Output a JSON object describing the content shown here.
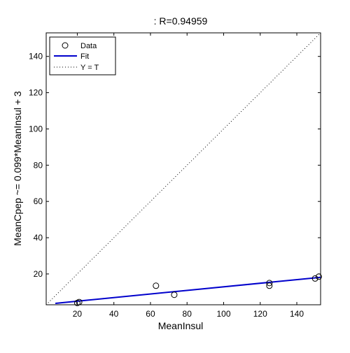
{
  "chart_data": {
    "type": "scatter",
    "title": ": R=0.94959",
    "xlabel": "MeanInsul",
    "ylabel": "MeanCpep ~= 0.099*MeanInsul + 3",
    "xlim": [
      3,
      153
    ],
    "ylim": [
      3,
      153
    ],
    "xticks": [
      20,
      40,
      60,
      80,
      100,
      120,
      140
    ],
    "yticks": [
      20,
      40,
      60,
      80,
      100,
      120,
      140
    ],
    "grid": false,
    "legend_position": "top-left",
    "legend": [
      "Data",
      "Fit",
      "Y = T"
    ],
    "series": [
      {
        "name": "Data",
        "kind": "markers",
        "x": [
          20,
          21,
          63,
          73,
          125,
          125,
          150,
          152
        ],
        "y": [
          4,
          4.5,
          13.5,
          8.5,
          15,
          13.5,
          17.5,
          18.5
        ]
      },
      {
        "name": "Fit",
        "kind": "line",
        "slope": 0.099,
        "intercept": 3,
        "x_range": [
          8,
          153
        ]
      },
      {
        "name": "Y = T",
        "kind": "dotted-line",
        "x_range": [
          3,
          153
        ]
      }
    ],
    "colors": {
      "fit": "#0000cc",
      "data": "#000000",
      "identity": "#000000"
    }
  }
}
